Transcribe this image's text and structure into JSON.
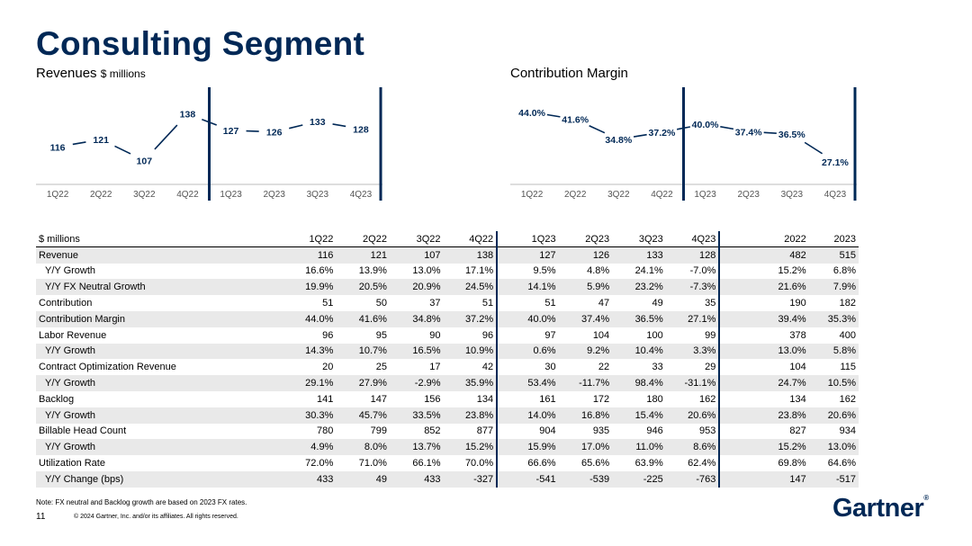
{
  "title": "Consulting Segment",
  "revenue_chart_title": "Revenues",
  "revenue_chart_unit": "$ millions",
  "margin_chart_title": "Contribution Margin",
  "chart_data": [
    {
      "type": "line",
      "title": "Revenues $ millions",
      "categories": [
        "1Q22",
        "2Q22",
        "3Q22",
        "4Q22",
        "1Q23",
        "2Q23",
        "3Q23",
        "4Q23"
      ],
      "values": [
        116,
        121,
        107,
        138,
        127,
        126,
        133,
        128
      ],
      "labels": [
        "116",
        "121",
        "107",
        "138",
        "127",
        "126",
        "133",
        "128"
      ],
      "ylim": [
        100,
        145
      ]
    },
    {
      "type": "line",
      "title": "Contribution Margin",
      "categories": [
        "1Q22",
        "2Q22",
        "3Q22",
        "4Q22",
        "1Q23",
        "2Q23",
        "3Q23",
        "4Q23"
      ],
      "values": [
        44.0,
        41.6,
        34.8,
        37.2,
        40.0,
        37.4,
        36.5,
        27.1
      ],
      "labels": [
        "44.0%",
        "41.6%",
        "34.8%",
        "37.2%",
        "40.0%",
        "37.4%",
        "36.5%",
        "27.1%"
      ],
      "ylim": [
        24,
        47
      ]
    }
  ],
  "table": {
    "corner": "$ millions",
    "columns": [
      "1Q22",
      "2Q22",
      "3Q22",
      "4Q22",
      "1Q23",
      "2Q23",
      "3Q23",
      "4Q23",
      "2022",
      "2023"
    ],
    "rows": [
      {
        "label": "Revenue",
        "values": [
          "116",
          "121",
          "107",
          "138",
          "127",
          "126",
          "133",
          "128",
          "482",
          "515"
        ]
      },
      {
        "label": "Y/Y Growth",
        "values": [
          "16.6%",
          "13.9%",
          "13.0%",
          "17.1%",
          "9.5%",
          "4.8%",
          "24.1%",
          "-7.0%",
          "15.2%",
          "6.8%"
        ]
      },
      {
        "label": "Y/Y FX Neutral Growth",
        "values": [
          "19.9%",
          "20.5%",
          "20.9%",
          "24.5%",
          "14.1%",
          "5.9%",
          "23.2%",
          "-7.3%",
          "21.6%",
          "7.9%"
        ]
      },
      {
        "label": "Contribution",
        "values": [
          "51",
          "50",
          "37",
          "51",
          "51",
          "47",
          "49",
          "35",
          "190",
          "182"
        ]
      },
      {
        "label": "Contribution Margin",
        "values": [
          "44.0%",
          "41.6%",
          "34.8%",
          "37.2%",
          "40.0%",
          "37.4%",
          "36.5%",
          "27.1%",
          "39.4%",
          "35.3%"
        ]
      },
      {
        "label": "Labor Revenue",
        "values": [
          "96",
          "95",
          "90",
          "96",
          "97",
          "104",
          "100",
          "99",
          "378",
          "400"
        ]
      },
      {
        "label": "Y/Y Growth",
        "values": [
          "14.3%",
          "10.7%",
          "16.5%",
          "10.9%",
          "0.6%",
          "9.2%",
          "10.4%",
          "3.3%",
          "13.0%",
          "5.8%"
        ]
      },
      {
        "label": "Contract Optimization Revenue",
        "values": [
          "20",
          "25",
          "17",
          "42",
          "30",
          "22",
          "33",
          "29",
          "104",
          "115"
        ]
      },
      {
        "label": "Y/Y Growth",
        "values": [
          "29.1%",
          "27.9%",
          "-2.9%",
          "35.9%",
          "53.4%",
          "-11.7%",
          "98.4%",
          "-31.1%",
          "24.7%",
          "10.5%"
        ]
      },
      {
        "label": "Backlog",
        "values": [
          "141",
          "147",
          "156",
          "134",
          "161",
          "172",
          "180",
          "162",
          "134",
          "162"
        ]
      },
      {
        "label": "Y/Y Growth",
        "values": [
          "30.3%",
          "45.7%",
          "33.5%",
          "23.8%",
          "14.0%",
          "16.8%",
          "15.4%",
          "20.6%",
          "23.8%",
          "20.6%"
        ]
      },
      {
        "label": "Billable Head Count",
        "values": [
          "780",
          "799",
          "852",
          "877",
          "904",
          "935",
          "946",
          "953",
          "827",
          "934"
        ]
      },
      {
        "label": "Y/Y Growth",
        "values": [
          "4.9%",
          "8.0%",
          "13.7%",
          "15.2%",
          "15.9%",
          "17.0%",
          "11.0%",
          "8.6%",
          "15.2%",
          "13.0%"
        ]
      },
      {
        "label": "Utilization Rate",
        "values": [
          "72.0%",
          "71.0%",
          "66.1%",
          "70.0%",
          "66.6%",
          "65.6%",
          "63.9%",
          "62.4%",
          "69.8%",
          "64.6%"
        ]
      },
      {
        "label": "Y/Y Change (bps)",
        "values": [
          "433",
          "49",
          "433",
          "-327",
          "-541",
          "-539",
          "-225",
          "-763",
          "147",
          "-517"
        ]
      }
    ]
  },
  "note": "Note: FX neutral and Backlog growth are based on 2023 FX rates.",
  "page_number": "11",
  "copyright": "© 2024 Gartner, Inc. and/or its affiliates. All rights reserved.",
  "logo_text": "Gartner",
  "logo_mark": "®",
  "colors": {
    "brand": "#002856",
    "shade": "#e9e9e9"
  }
}
